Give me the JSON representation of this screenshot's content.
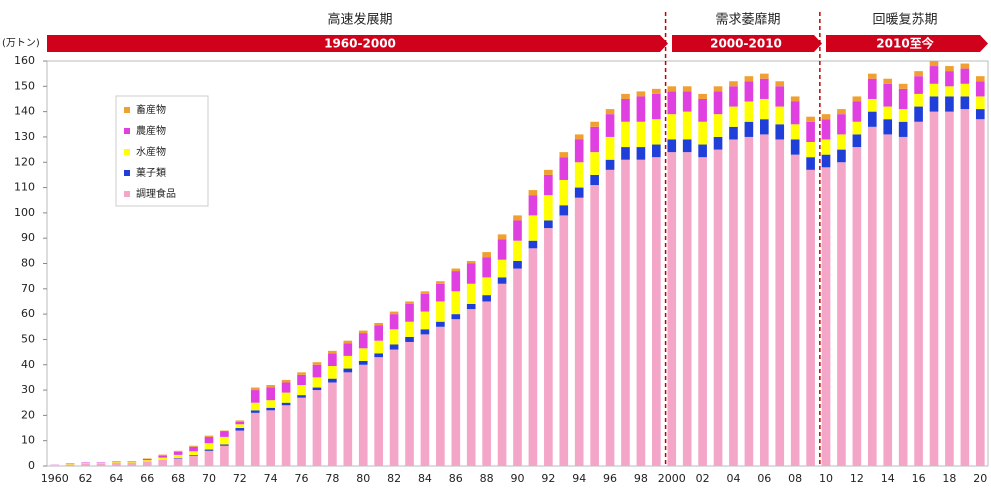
{
  "chart_data": {
    "type": "stacked_bar",
    "y_unit": "(万トン)",
    "periods": [
      {
        "title": "高速发展期",
        "range": "1960-2000"
      },
      {
        "title": "需求萎靡期",
        "range": "2000-2010"
      },
      {
        "title": "回暖复苏期",
        "range": "2010至今"
      }
    ],
    "categories": [
      "1960",
      null,
      "62",
      null,
      "64",
      null,
      "66",
      null,
      "68",
      null,
      "70",
      null,
      "72",
      null,
      "74",
      null,
      "76",
      null,
      "78",
      null,
      "80",
      null,
      "82",
      null,
      "84",
      null,
      "86",
      null,
      "88",
      null,
      "90",
      null,
      "92",
      null,
      "94",
      null,
      "96",
      null,
      "98",
      null,
      "2000",
      null,
      "02",
      null,
      "04",
      null,
      "06",
      null,
      "08",
      null,
      "10",
      null,
      "12",
      null,
      "14",
      null,
      "16",
      null,
      "18",
      null,
      "20"
    ],
    "series": [
      {
        "name": "畜産物",
        "color": "#f0a030",
        "values": [
          0,
          0,
          0,
          0,
          0,
          0,
          0.2,
          0.4,
          0.4,
          0.4,
          0.5,
          0.2,
          0.5,
          1,
          1,
          1,
          1,
          1,
          1,
          1,
          1,
          1,
          1,
          1,
          1,
          1,
          1,
          1,
          2,
          2,
          2,
          2,
          2,
          2,
          2,
          2,
          2,
          2,
          2,
          2,
          2,
          2,
          2,
          2,
          2,
          2,
          2,
          2,
          2,
          2,
          2,
          2,
          2,
          2,
          2,
          2,
          2,
          2,
          2,
          2,
          2
        ]
      },
      {
        "name": "農産物",
        "color": "#e040e0",
        "values": [
          0.1,
          0.2,
          0.2,
          0.2,
          0.3,
          0.3,
          0.5,
          0.8,
          1.2,
          1.8,
          2.5,
          2.3,
          1,
          5,
          5,
          4,
          4,
          5,
          5,
          5,
          6,
          6,
          6,
          7,
          7,
          7,
          8,
          8,
          8,
          8,
          8,
          8,
          8,
          9,
          9,
          10,
          9,
          9,
          10,
          10,
          9,
          8,
          9,
          9,
          8,
          8,
          8,
          8,
          9,
          8,
          8,
          8,
          8,
          8,
          9,
          8,
          7,
          7,
          6,
          6,
          6
        ]
      },
      {
        "name": "水産物",
        "color": "#ffff00",
        "values": [
          0.1,
          0.2,
          0.2,
          0.2,
          0.3,
          0.3,
          0.5,
          0.8,
          1.2,
          1.5,
          2.5,
          3,
          1.5,
          3,
          3,
          4,
          4,
          4,
          5,
          5,
          5,
          5,
          6,
          6,
          7,
          8,
          9,
          8,
          7,
          7,
          8,
          10,
          10,
          10,
          10,
          9,
          9,
          10,
          10,
          10,
          10,
          11,
          9,
          9,
          8,
          8,
          8,
          7,
          6,
          6,
          6,
          6,
          5,
          5,
          5,
          5,
          5,
          5,
          4,
          5,
          5
        ]
      },
      {
        "name": "菓子類",
        "color": "#1f3fd8",
        "values": [
          0,
          0,
          0,
          0,
          0,
          0,
          0,
          0,
          0.2,
          0.3,
          0.5,
          0.5,
          1,
          1,
          1,
          1,
          1,
          1,
          1.5,
          1.5,
          1.5,
          1.5,
          2,
          2,
          2,
          2,
          2,
          2,
          2.5,
          2.5,
          3,
          3,
          3,
          4,
          4,
          4,
          4,
          5,
          5,
          5,
          5,
          5,
          5,
          5,
          5,
          6,
          6,
          6,
          6,
          5,
          5,
          5,
          5,
          6,
          6,
          6,
          6,
          6,
          6,
          5,
          4
        ]
      },
      {
        "name": "調理食品",
        "color": "#f4a6c8",
        "values": [
          0.3,
          0.6,
          1,
          1,
          1.2,
          1.2,
          1.8,
          2.5,
          3,
          4,
          6,
          8,
          14,
          21,
          22,
          24,
          27,
          30,
          33,
          37,
          40,
          43,
          46,
          49,
          52,
          55,
          58,
          62,
          65,
          72,
          78,
          86,
          94,
          99,
          106,
          111,
          117,
          121,
          121,
          122,
          124,
          124,
          122,
          125,
          129,
          130,
          131,
          129,
          123,
          117,
          118,
          120,
          126,
          134,
          131,
          130,
          136,
          140,
          140,
          141,
          137
        ]
      }
    ],
    "ylim": [
      0,
      160
    ],
    "yticks": [
      0,
      10,
      20,
      30,
      40,
      50,
      60,
      70,
      80,
      90,
      100,
      110,
      120,
      130,
      140,
      150,
      160
    ],
    "grid": false
  }
}
